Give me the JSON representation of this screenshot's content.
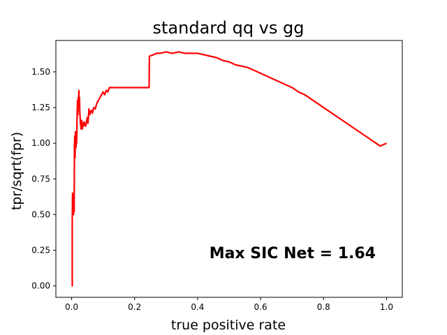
{
  "chart_data": {
    "type": "line",
    "title": "standard qq vs gg",
    "xlabel": "true positive rate",
    "ylabel": "tpr/sqrt(fpr)",
    "xlim": [
      -0.05,
      1.05
    ],
    "ylim": [
      -0.08,
      1.72
    ],
    "xticks": [
      0.0,
      0.2,
      0.4,
      0.6,
      0.8,
      1.0
    ],
    "xtick_labels": [
      "0.0",
      "0.2",
      "0.4",
      "0.6",
      "0.8",
      "1.0"
    ],
    "yticks": [
      0.0,
      0.25,
      0.5,
      0.75,
      1.0,
      1.25,
      1.5
    ],
    "ytick_labels": [
      "0.00",
      "0.25",
      "0.50",
      "0.75",
      "1.00",
      "1.25",
      "1.50"
    ],
    "grid": false,
    "annotation": "Max SIC Net = 1.64",
    "series": [
      {
        "color": "#ff0000",
        "x": [
          0.0,
          0.001,
          0.002,
          0.002,
          0.003,
          0.004,
          0.004,
          0.005,
          0.006,
          0.007,
          0.008,
          0.009,
          0.01,
          0.011,
          0.012,
          0.013,
          0.014,
          0.015,
          0.016,
          0.017,
          0.018,
          0.019,
          0.02,
          0.021,
          0.022,
          0.023,
          0.024,
          0.025,
          0.026,
          0.027,
          0.028,
          0.029,
          0.03,
          0.031,
          0.032,
          0.034,
          0.036,
          0.038,
          0.04,
          0.042,
          0.045,
          0.048,
          0.05,
          0.052,
          0.055,
          0.058,
          0.06,
          0.063,
          0.066,
          0.07,
          0.075,
          0.08,
          0.085,
          0.09,
          0.095,
          0.1,
          0.105,
          0.11,
          0.115,
          0.12,
          0.122,
          0.15,
          0.2,
          0.246,
          0.247,
          0.26,
          0.27,
          0.28,
          0.3,
          0.32,
          0.34,
          0.36,
          0.38,
          0.4,
          0.42,
          0.44,
          0.46,
          0.48,
          0.5,
          0.52,
          0.54,
          0.56,
          0.58,
          0.6,
          0.62,
          0.64,
          0.66,
          0.68,
          0.7,
          0.72,
          0.74,
          0.76,
          0.78,
          0.8,
          0.82,
          0.84,
          0.86,
          0.88,
          0.9,
          0.92,
          0.94,
          0.96,
          0.98,
          1.0
        ],
        "y": [
          0.0,
          0.0,
          0.0,
          0.45,
          0.65,
          0.52,
          0.63,
          0.55,
          0.5,
          0.62,
          0.52,
          0.98,
          1.05,
          0.9,
          1.08,
          1.0,
          0.97,
          1.05,
          1.0,
          1.15,
          1.25,
          1.3,
          1.2,
          1.32,
          1.26,
          1.37,
          1.27,
          1.32,
          1.22,
          1.18,
          1.13,
          1.15,
          1.1,
          1.12,
          1.16,
          1.1,
          1.14,
          1.12,
          1.15,
          1.13,
          1.12,
          1.16,
          1.18,
          1.14,
          1.24,
          1.2,
          1.22,
          1.23,
          1.21,
          1.25,
          1.24,
          1.28,
          1.3,
          1.32,
          1.34,
          1.36,
          1.34,
          1.37,
          1.36,
          1.39,
          1.39,
          1.39,
          1.39,
          1.39,
          1.61,
          1.62,
          1.63,
          1.63,
          1.64,
          1.63,
          1.64,
          1.63,
          1.63,
          1.63,
          1.62,
          1.61,
          1.6,
          1.58,
          1.57,
          1.55,
          1.54,
          1.53,
          1.51,
          1.49,
          1.47,
          1.45,
          1.43,
          1.41,
          1.39,
          1.36,
          1.34,
          1.31,
          1.28,
          1.25,
          1.22,
          1.19,
          1.16,
          1.13,
          1.1,
          1.07,
          1.04,
          1.01,
          0.98,
          1.0
        ]
      }
    ]
  }
}
